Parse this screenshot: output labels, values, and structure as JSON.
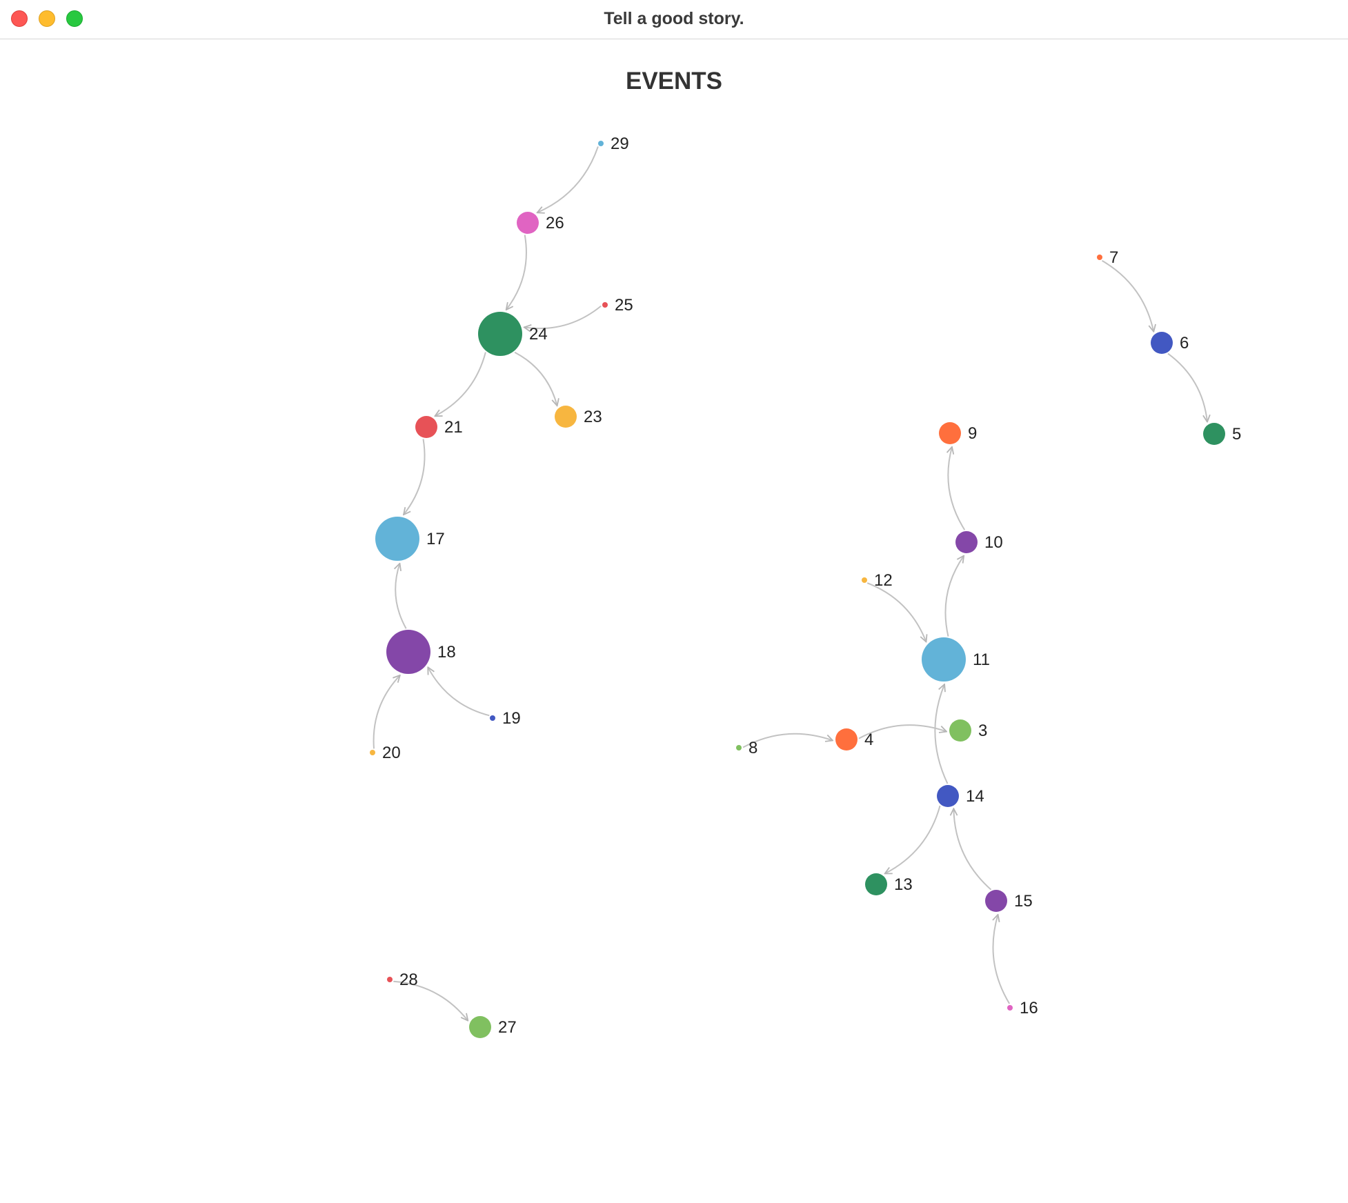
{
  "window": {
    "title": "Tell a good story."
  },
  "graph": {
    "title": "EVENTS",
    "nodes": [
      {
        "id": "3",
        "color": "#80c060"
      },
      {
        "id": "4",
        "color": "#ff6f3d"
      },
      {
        "id": "5",
        "color": "#2e9160"
      },
      {
        "id": "6",
        "color": "#4258c2"
      },
      {
        "id": "7",
        "color": "#ff6f3d"
      },
      {
        "id": "8",
        "color": "#80c060"
      },
      {
        "id": "9",
        "color": "#ff6f3d"
      },
      {
        "id": "10",
        "color": "#8447a8"
      },
      {
        "id": "11",
        "color": "#62b3d8"
      },
      {
        "id": "12",
        "color": "#f7b640"
      },
      {
        "id": "13",
        "color": "#2e9160"
      },
      {
        "id": "14",
        "color": "#4258c2"
      },
      {
        "id": "15",
        "color": "#8447a8"
      },
      {
        "id": "16",
        "color": "#e064c2"
      },
      {
        "id": "17",
        "color": "#62b3d8"
      },
      {
        "id": "18",
        "color": "#8447a8"
      },
      {
        "id": "19",
        "color": "#4258c2"
      },
      {
        "id": "20",
        "color": "#f7b640"
      },
      {
        "id": "21",
        "color": "#e75257"
      },
      {
        "id": "23",
        "color": "#f7b640"
      },
      {
        "id": "24",
        "color": "#2e9160"
      },
      {
        "id": "25",
        "color": "#e75257"
      },
      {
        "id": "26",
        "color": "#e064c2"
      },
      {
        "id": "27",
        "color": "#80c060"
      },
      {
        "id": "28",
        "color": "#e75257"
      },
      {
        "id": "29",
        "color": "#62b3d8"
      }
    ],
    "edges": [
      {
        "source": "29",
        "target": "26"
      },
      {
        "source": "26",
        "target": "24"
      },
      {
        "source": "25",
        "target": "24"
      },
      {
        "source": "24",
        "target": "21"
      },
      {
        "source": "24",
        "target": "23"
      },
      {
        "source": "21",
        "target": "17"
      },
      {
        "source": "18",
        "target": "17"
      },
      {
        "source": "20",
        "target": "18"
      },
      {
        "source": "19",
        "target": "18"
      },
      {
        "source": "28",
        "target": "27"
      },
      {
        "source": "7",
        "target": "6"
      },
      {
        "source": "6",
        "target": "5"
      },
      {
        "source": "10",
        "target": "9"
      },
      {
        "source": "11",
        "target": "10"
      },
      {
        "source": "12",
        "target": "11"
      },
      {
        "source": "14",
        "target": "11"
      },
      {
        "source": "8",
        "target": "4"
      },
      {
        "source": "4",
        "target": "3"
      },
      {
        "source": "14",
        "target": "13"
      },
      {
        "source": "15",
        "target": "14"
      },
      {
        "source": "16",
        "target": "15"
      }
    ]
  }
}
